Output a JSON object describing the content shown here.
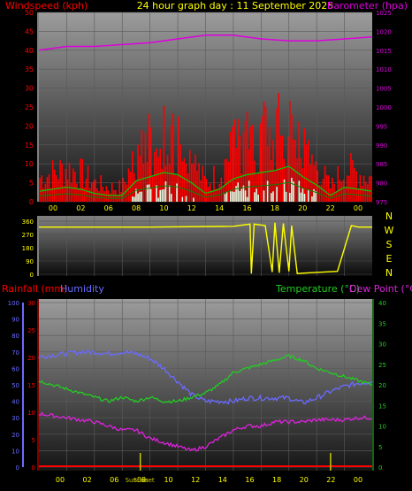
{
  "header": {
    "title": "24 hour graph day : 11 September 2025",
    "left_label": "Windspeed (kph)",
    "right_label": "Barometer (hpa)"
  },
  "colors": {
    "title": "#ffff00",
    "wind": "#ff0000",
    "gust": "#ff2a2a",
    "wind_avg": "#00d000",
    "wind_light": "#e6ffe6",
    "baro": "#dd00dd",
    "dir": "#ffff00",
    "rain": "#ff0000",
    "humidity": "#6a6aff",
    "temperature": "#22cc22",
    "dewpoint": "#dd22dd",
    "sun": "#c8c800",
    "axis_left_lower": "#6a6aff",
    "axis_right_lower": "#22cc22"
  },
  "x_labels": [
    "00",
    "02",
    "06",
    "08",
    "10",
    "12",
    "14",
    "16",
    "18",
    "20",
    "22",
    "00"
  ],
  "chart_data": [
    {
      "type": "line",
      "id": "wind_baro",
      "series": [
        {
          "name": "Windspeed (kph)",
          "axis": "left",
          "x": [
            0,
            1,
            2,
            3,
            4,
            5,
            6,
            7,
            8,
            9,
            10,
            11,
            12,
            13,
            14,
            15,
            16,
            17,
            18,
            19,
            20,
            21,
            22,
            23,
            24
          ],
          "values": [
            5,
            6,
            7,
            6,
            4,
            3,
            3,
            10,
            12,
            14,
            13,
            9,
            4,
            6,
            11,
            13,
            14,
            15,
            17,
            12,
            8,
            3,
            7,
            6,
            5
          ]
        },
        {
          "name": "Barometer (hpa)",
          "axis": "right",
          "x": [
            0,
            2,
            4,
            6,
            8,
            10,
            12,
            14,
            16,
            18,
            20,
            22,
            24
          ],
          "values": [
            1015,
            1016,
            1016,
            1016.5,
            1017,
            1018,
            1019,
            1019,
            1018,
            1017.5,
            1017.5,
            1018,
            1018.5
          ]
        }
      ],
      "xlim": [
        0,
        24
      ],
      "left_axis": {
        "ylim": [
          0,
          50
        ],
        "ticks": [
          0,
          5,
          10,
          15,
          20,
          25,
          30,
          35,
          40,
          45,
          50
        ]
      },
      "right_axis": {
        "ylim": [
          975,
          1025
        ],
        "ticks": [
          975,
          980,
          985,
          990,
          995,
          1000,
          1005,
          1010,
          1015,
          1020,
          1025
        ]
      }
    },
    {
      "type": "line",
      "id": "wind_direction",
      "series": [
        {
          "name": "Wind direction",
          "x": [
            0,
            8,
            14,
            15.2,
            15.3,
            15.5,
            16.3,
            16.8,
            17.0,
            17.3,
            17.6,
            18.0,
            18.2,
            18.6,
            19.5,
            21.5,
            22.5,
            23.0,
            24
          ],
          "values": [
            320,
            320,
            325,
            340,
            5,
            340,
            330,
            15,
            350,
            10,
            345,
            20,
            330,
            5,
            10,
            20,
            330,
            320,
            320
          ]
        }
      ],
      "xlim": [
        0,
        24
      ],
      "ylim": [
        0,
        360
      ],
      "left_ticks": [
        0,
        90,
        180,
        270,
        360
      ],
      "compass": [
        "N",
        "W",
        "S",
        "E",
        "N"
      ]
    },
    {
      "type": "line",
      "id": "temp_hum_rain",
      "series": [
        {
          "name": "Humidity",
          "axis": "far_left",
          "x": [
            0,
            1,
            2,
            3,
            4,
            5,
            6,
            7,
            8,
            9,
            10,
            11,
            12,
            13,
            14,
            15,
            16,
            17,
            18,
            19,
            20,
            21,
            22,
            23,
            24
          ],
          "values": [
            67,
            68,
            69,
            70,
            70,
            69,
            70,
            69,
            66,
            60,
            52,
            44,
            40,
            40,
            40,
            42,
            42,
            42,
            42,
            39,
            42,
            46,
            49,
            51,
            52
          ]
        },
        {
          "name": "Temperature (°C)",
          "axis": "right",
          "x": [
            0,
            1,
            2,
            3,
            4,
            5,
            6,
            7,
            8,
            9,
            10,
            11,
            12,
            13,
            14,
            15,
            16,
            17,
            18,
            19,
            20,
            21,
            22,
            23,
            24
          ],
          "values": [
            21,
            20,
            19,
            18,
            17,
            16,
            17,
            16,
            17,
            16,
            16,
            17,
            18,
            20,
            23,
            24,
            25,
            26,
            27,
            26,
            24,
            23,
            22,
            21,
            20
          ]
        },
        {
          "name": "Dew Point (°C)",
          "axis": "right",
          "x": [
            0,
            1,
            2,
            3,
            4,
            5,
            6,
            7,
            8,
            9,
            10,
            11,
            12,
            13,
            14,
            15,
            16,
            17,
            18,
            19,
            20,
            21,
            22,
            23,
            24
          ],
          "values": [
            13,
            12.5,
            12,
            11.5,
            11,
            10,
            9,
            9,
            7,
            6,
            5,
            4,
            5,
            7,
            9,
            10,
            10,
            11,
            11,
            11,
            11.5,
            11.5,
            11.5,
            12,
            12
          ]
        },
        {
          "name": "Rainfall (mm)",
          "axis": "left",
          "x": [
            0,
            24
          ],
          "values": [
            0,
            0
          ]
        }
      ],
      "xlim": [
        0,
        24
      ],
      "rain_axis": {
        "ylim": [
          0,
          30
        ],
        "ticks": [
          0,
          5,
          10,
          15,
          20,
          25,
          30
        ]
      },
      "humidity_axis": {
        "ylim": [
          0,
          100
        ],
        "ticks": [
          0,
          10,
          20,
          30,
          40,
          50,
          60,
          70,
          80,
          90,
          100
        ]
      },
      "temp_axis": {
        "ylim": [
          0,
          40
        ],
        "ticks": [
          0,
          5,
          10,
          15,
          20,
          25,
          30,
          35,
          40
        ]
      },
      "sunrise_hours": [
        7.3,
        21.0
      ]
    }
  ],
  "lower": {
    "rain_label": "Rainfall (mm)",
    "humidity_label": "Humidity",
    "temp_label": "Temperature (°C)",
    "dew_label": "Dew Point (°C)",
    "sunrise": "Sunrise",
    "sunset": "Sunset"
  }
}
